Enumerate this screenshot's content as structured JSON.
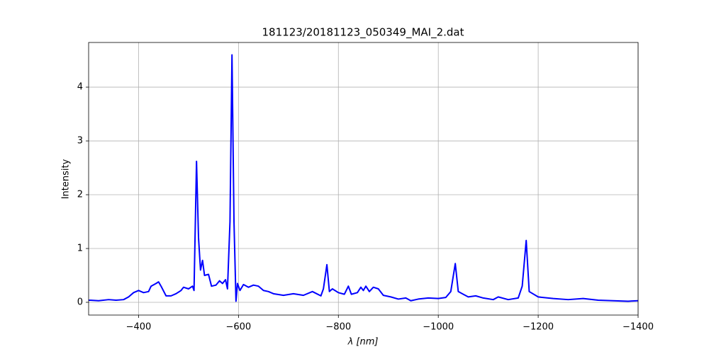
{
  "chart_data": {
    "type": "line",
    "title": "181123/20181123_050349_MAI_2.dat",
    "x_label": "λ [nm]",
    "y_label": "Intensity",
    "x": [
      -300,
      -320,
      -340,
      -355,
      -370,
      -380,
      -390,
      -400,
      -410,
      -420,
      -425,
      -435,
      -440,
      -445,
      -455,
      -465,
      -475,
      -485,
      -490,
      -500,
      -508,
      -511,
      -516,
      -520,
      -524,
      -528,
      -532,
      -540,
      -546,
      -555,
      -562,
      -568,
      -574,
      -578,
      -583,
      -587,
      -591,
      -595,
      -598,
      -603,
      -610,
      -620,
      -630,
      -640,
      -650,
      -660,
      -670,
      -690,
      -710,
      -730,
      -748,
      -765,
      -770,
      -777,
      -782,
      -788,
      -800,
      -812,
      -820,
      -826,
      -838,
      -845,
      -850,
      -855,
      -862,
      -870,
      -880,
      -890,
      -905,
      -920,
      -935,
      -945,
      -960,
      -980,
      -1000,
      -1015,
      -1025,
      -1034,
      -1040,
      -1050,
      -1060,
      -1075,
      -1090,
      -1110,
      -1120,
      -1140,
      -1160,
      -1168,
      -1176,
      -1182,
      -1200,
      -1230,
      -1260,
      -1290,
      -1320,
      -1350,
      -1380,
      -1400
    ],
    "values": [
      0.04,
      0.03,
      0.05,
      0.04,
      0.05,
      0.1,
      0.18,
      0.22,
      0.18,
      0.2,
      0.3,
      0.35,
      0.38,
      0.3,
      0.12,
      0.12,
      0.16,
      0.22,
      0.28,
      0.25,
      0.3,
      0.22,
      2.62,
      1.2,
      0.6,
      0.78,
      0.5,
      0.52,
      0.3,
      0.32,
      0.4,
      0.35,
      0.42,
      0.25,
      1.5,
      4.6,
      1.5,
      0.02,
      0.35,
      0.22,
      0.33,
      0.28,
      0.32,
      0.3,
      0.22,
      0.2,
      0.16,
      0.13,
      0.16,
      0.13,
      0.2,
      0.12,
      0.25,
      0.7,
      0.2,
      0.25,
      0.18,
      0.15,
      0.3,
      0.15,
      0.18,
      0.28,
      0.22,
      0.3,
      0.2,
      0.28,
      0.25,
      0.13,
      0.1,
      0.06,
      0.08,
      0.03,
      0.06,
      0.08,
      0.07,
      0.09,
      0.2,
      0.72,
      0.2,
      0.15,
      0.1,
      0.12,
      0.08,
      0.05,
      0.1,
      0.05,
      0.08,
      0.3,
      1.15,
      0.2,
      0.1,
      0.07,
      0.05,
      0.07,
      0.04,
      0.03,
      0.02,
      0.03
    ],
    "color": "#0000ff",
    "xlim": [
      -300,
      -1400
    ],
    "xticks": [
      {
        "value": -400,
        "label": "−400"
      },
      {
        "value": -600,
        "label": "−600"
      },
      {
        "value": -800,
        "label": "−800"
      },
      {
        "value": -1000,
        "label": "−1000"
      },
      {
        "value": -1200,
        "label": "−1200"
      },
      {
        "value": -1400,
        "label": "−1400"
      }
    ],
    "ylim": [
      -0.237,
      4.83
    ],
    "yticks": [
      0,
      1,
      2,
      3,
      4
    ],
    "grid": true
  }
}
